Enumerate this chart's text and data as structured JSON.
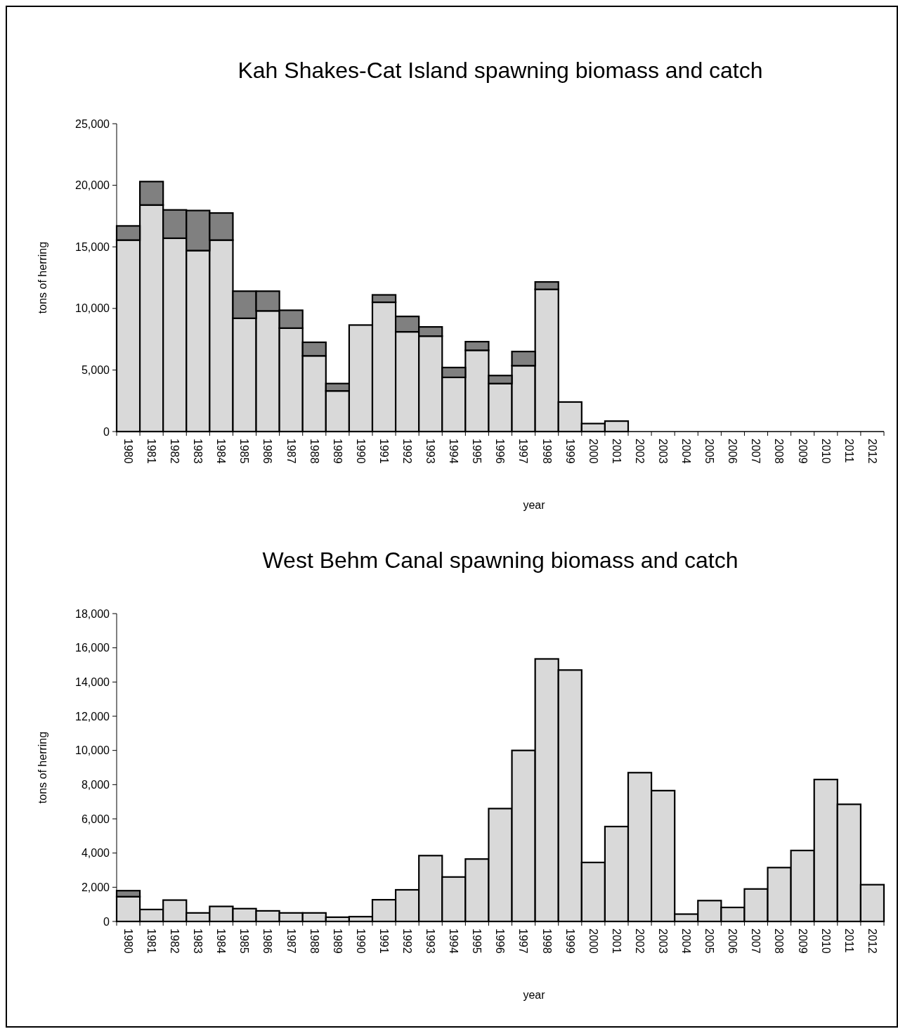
{
  "chart_data": [
    {
      "type": "bar",
      "title": "Kah Shakes-Cat Island spawning biomass and catch",
      "xlabel": "year",
      "ylabel": "tons of herring",
      "stacked": true,
      "grid": false,
      "categories": [
        "1980",
        "1981",
        "1982",
        "1983",
        "1984",
        "1985",
        "1986",
        "1987",
        "1988",
        "1989",
        "1990",
        "1991",
        "1992",
        "1993",
        "1994",
        "1995",
        "1996",
        "1997",
        "1998",
        "1999",
        "2000",
        "2001",
        "2002",
        "2003",
        "2004",
        "2005",
        "2006",
        "2007",
        "2008",
        "2009",
        "2010",
        "2011",
        "2012"
      ],
      "ylim": [
        0,
        25000
      ],
      "yticks": [
        {
          "value": 0,
          "label": "0"
        },
        {
          "value": 5000,
          "label": "5,000"
        },
        {
          "value": 10000,
          "label": "10,000"
        },
        {
          "value": 15000,
          "label": "15,000"
        },
        {
          "value": 20000,
          "label": "20,000"
        },
        {
          "value": 25000,
          "label": "25,000"
        }
      ],
      "series": [
        {
          "color": "#d9d9d9",
          "values": [
            15550,
            18400,
            15700,
            14700,
            15550,
            9200,
            9800,
            8400,
            6150,
            3300,
            8650,
            10500,
            8100,
            7750,
            4400,
            6600,
            3900,
            5350,
            11550,
            2400,
            650,
            850,
            null,
            null,
            null,
            null,
            null,
            null,
            null,
            null,
            null,
            null,
            null
          ]
        },
        {
          "color": "#808080",
          "values": [
            1150,
            1900,
            2300,
            3250,
            2200,
            2200,
            1600,
            1450,
            1100,
            600,
            null,
            600,
            1250,
            750,
            800,
            700,
            650,
            1150,
            600,
            null,
            null,
            null,
            null,
            null,
            null,
            null,
            null,
            null,
            null,
            null,
            null,
            null,
            null
          ]
        }
      ]
    },
    {
      "type": "bar",
      "title": "West Behm Canal spawning biomass and catch",
      "xlabel": "year",
      "ylabel": "tons of herring",
      "stacked": true,
      "grid": false,
      "categories": [
        "1980",
        "1981",
        "1982",
        "1983",
        "1984",
        "1985",
        "1986",
        "1987",
        "1988",
        "1989",
        "1990",
        "1991",
        "1992",
        "1993",
        "1994",
        "1995",
        "1996",
        "1997",
        "1998",
        "1999",
        "2000",
        "2001",
        "2002",
        "2003",
        "2004",
        "2005",
        "2006",
        "2007",
        "2008",
        "2009",
        "2010",
        "2011",
        "2012"
      ],
      "ylim": [
        0,
        18000
      ],
      "yticks": [
        {
          "value": 0,
          "label": "0"
        },
        {
          "value": 2000,
          "label": "2,000"
        },
        {
          "value": 4000,
          "label": "4,000"
        },
        {
          "value": 6000,
          "label": "6,000"
        },
        {
          "value": 8000,
          "label": "8,000"
        },
        {
          "value": 10000,
          "label": "10,000"
        },
        {
          "value": 12000,
          "label": "12,000"
        },
        {
          "value": 14000,
          "label": "14,000"
        },
        {
          "value": 16000,
          "label": "16,000"
        },
        {
          "value": 18000,
          "label": "18,000"
        }
      ],
      "series": [
        {
          "color": "#d9d9d9",
          "values": [
            1450,
            700,
            1250,
            500,
            880,
            750,
            620,
            500,
            500,
            250,
            280,
            1270,
            1850,
            3850,
            2600,
            3650,
            6600,
            10000,
            15350,
            14700,
            3450,
            5550,
            8700,
            7650,
            430,
            1220,
            820,
            1900,
            3150,
            4150,
            8300,
            6850,
            2150
          ]
        },
        {
          "color": "#808080",
          "values": [
            350,
            null,
            null,
            null,
            null,
            null,
            null,
            null,
            null,
            null,
            null,
            null,
            null,
            null,
            null,
            null,
            null,
            null,
            null,
            null,
            null,
            null,
            null,
            null,
            null,
            null,
            null,
            null,
            null,
            null,
            null,
            null,
            null
          ]
        }
      ]
    }
  ]
}
